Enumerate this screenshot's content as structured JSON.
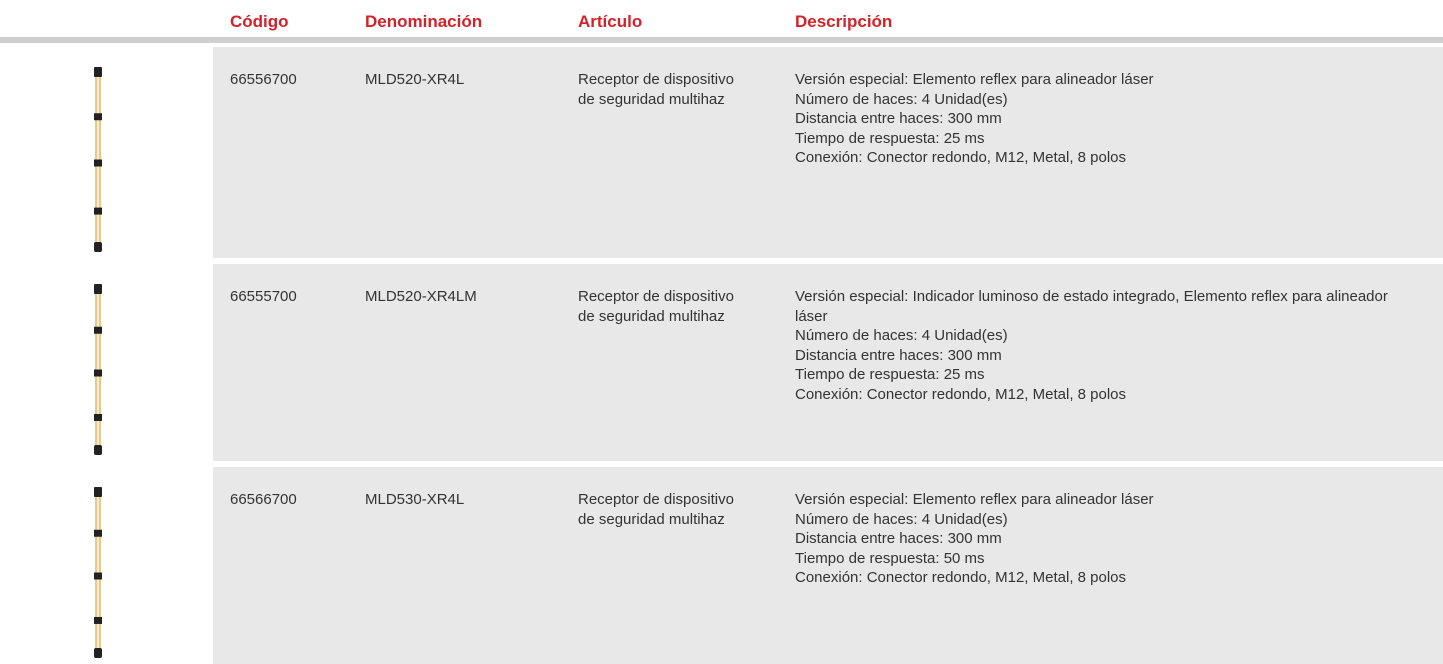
{
  "header": {
    "columns": [
      "Código",
      "Denominación",
      "Artículo",
      "Descripción"
    ]
  },
  "rows": [
    {
      "code": "66556700",
      "name": "MLD520-XR4L",
      "article": "Receptor de dispositivo de seguridad multihaz",
      "description": [
        "Versión especial: Elemento reflex para alineador láser",
        "Número de haces: 4 Unidad(es)",
        "Distancia entre haces: 300 mm",
        "Tiempo de respuesta: 25 ms",
        "Conexión: Conector redondo, M12, Metal, 8 polos"
      ]
    },
    {
      "code": "66555700",
      "name": "MLD520-XR4LM",
      "article": "Receptor de dispositivo de seguridad multihaz",
      "description": [
        "Versión especial: Indicador luminoso de estado integrado, Elemento reflex para alineador láser",
        "Número de haces: 4 Unidad(es)",
        "Distancia entre haces: 300 mm",
        "Tiempo de respuesta: 25 ms",
        "Conexión: Conector redondo, M12, Metal, 8 polos"
      ]
    },
    {
      "code": "66566700",
      "name": "MLD530-XR4L",
      "article": "Receptor de dispositivo de seguridad multihaz",
      "description": [
        "Versión especial: Elemento reflex para alineador láser",
        "Número de haces: 4 Unidad(es)",
        "Distancia entre haces: 300 mm",
        "Tiempo de respuesta: 50 ms",
        "Conexión: Conector redondo, M12, Metal, 8 polos"
      ]
    }
  ]
}
